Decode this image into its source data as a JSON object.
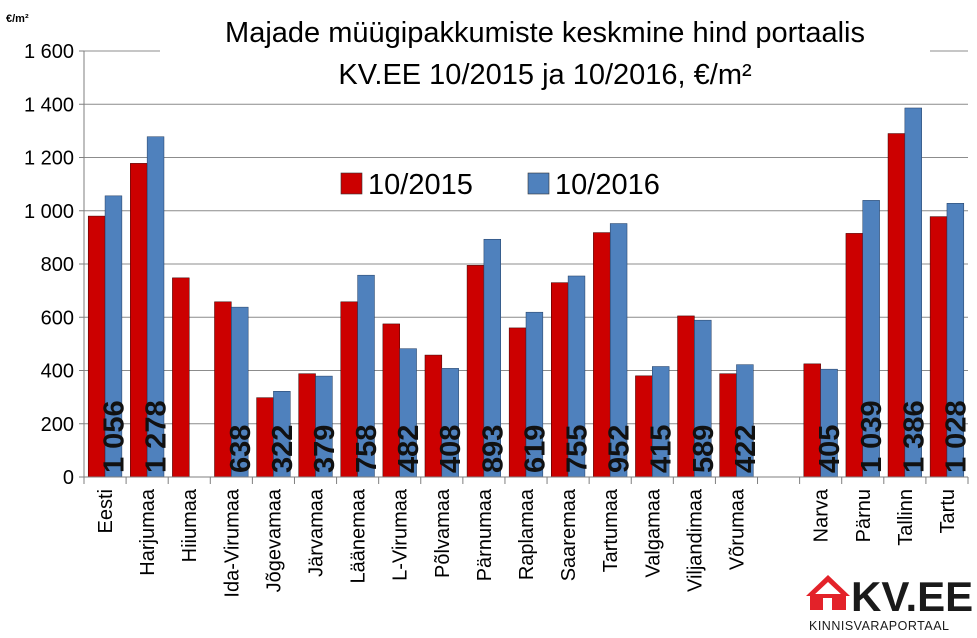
{
  "chart_data": {
    "type": "bar",
    "title_lines": [
      "Majade müügipakkumiste keskmine hind portaalis",
      "KV.EE 10/2015 ja 10/2016, €/m²"
    ],
    "unit_label": "€/m²",
    "ylim": [
      0,
      1600
    ],
    "yticks": [
      0,
      200,
      400,
      600,
      800,
      1000,
      1200,
      1400,
      1600
    ],
    "ytick_labels": [
      "0",
      "200",
      "400",
      "600",
      "800",
      "1 000",
      "1 200",
      "1 400",
      "1 600"
    ],
    "grid": true,
    "legend_position": "top-center",
    "categories": [
      "Eesti",
      "Harjumaa",
      "Hiiumaa",
      "Ida-Virumaa",
      "Jõgevamaa",
      "Järvamaa",
      "Läänemaa",
      "L-Virumaa",
      "Põlvamaa",
      "Pärnumaa",
      "Raplamaa",
      "Saaremaa",
      "Tartumaa",
      "Valgamaa",
      "Viljandimaa",
      "Võrumaa",
      "",
      "Narva",
      "Pärnu",
      "Tallinn",
      "Tartu"
    ],
    "series": [
      {
        "name": "10/2015",
        "color": "#cc0000",
        "values": [
          980,
          1178,
          748,
          658,
          298,
          388,
          658,
          575,
          458,
          795,
          560,
          730,
          918,
          380,
          605,
          388,
          null,
          425,
          915,
          1290,
          978
        ]
      },
      {
        "name": "10/2016",
        "color": "#4f81bd",
        "values": [
          1056,
          1278,
          null,
          638,
          322,
          379,
          758,
          482,
          408,
          893,
          619,
          755,
          952,
          415,
          589,
          422,
          null,
          405,
          1039,
          1386,
          1028
        ]
      }
    ],
    "data_labels": [
      "1 056",
      "1 278",
      "",
      "638",
      "322",
      "379",
      "758",
      "482",
      "408",
      "893",
      "619",
      "755",
      "952",
      "415",
      "589",
      "422",
      "",
      "405",
      "1 039",
      "1 386",
      "1 028"
    ]
  },
  "logo": {
    "name": "KV.EE",
    "tagline": "KINNISVARAPORTAAL",
    "red": "#e32229"
  }
}
